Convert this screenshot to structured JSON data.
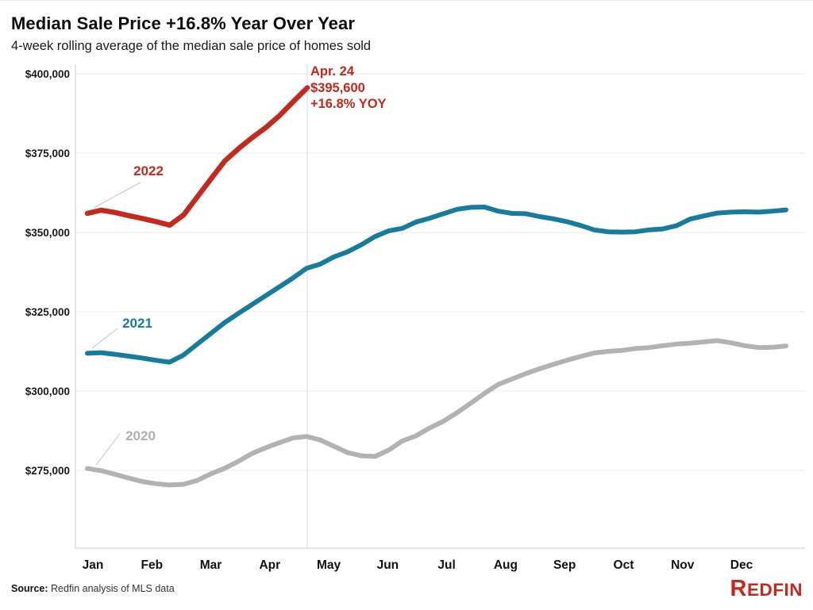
{
  "header": {
    "title": "Median Sale Price +16.8% Year Over Year",
    "subtitle": "4-week rolling average of the median sale price of homes sold"
  },
  "annotation": {
    "lines": [
      "Apr. 24",
      "$395,600",
      "+16.8% YOY"
    ]
  },
  "footer": {
    "source_label": "Source:",
    "source_text": " Redfin analysis of MLS data",
    "logo_first": "R",
    "logo_rest": "EDFIN"
  },
  "chart_data": {
    "type": "line",
    "title": "Median Sale Price +16.8% Year Over Year",
    "subtitle": "4-week rolling average of the median sale price of homes sold",
    "x_description": "weekly points, January through December of each year",
    "x_tick_labels": [
      "Jan",
      "Feb",
      "Mar",
      "Apr",
      "May",
      "Jun",
      "Jul",
      "Aug",
      "Sep",
      "Oct",
      "Nov",
      "Dec"
    ],
    "y_ticks": [
      {
        "label": "$400,000",
        "value": 400000
      },
      {
        "label": "$375,000",
        "value": 375000
      },
      {
        "label": "$350,000",
        "value": 350000
      },
      {
        "label": "$325,000",
        "value": 325000
      },
      {
        "label": "$300,000",
        "value": 300000
      },
      {
        "label": "$275,000",
        "value": 275000
      }
    ],
    "ylim": [
      250000,
      400000
    ],
    "grid": "horizontal",
    "legend": "inline-labels",
    "highlight": {
      "date_label": "Apr. 24",
      "series": "2022",
      "value": 395600,
      "value_label": "$395,600",
      "yoy_label": "+16.8% YOY"
    },
    "series": [
      {
        "name": "2020",
        "color": "#b2b2b2",
        "values": [
          275600,
          274900,
          273800,
          272600,
          271500,
          270800,
          270400,
          270600,
          271800,
          273900,
          275600,
          277800,
          280300,
          282100,
          283700,
          285200,
          285700,
          284600,
          282600,
          280600,
          279600,
          279400,
          281400,
          284300,
          285900,
          288400,
          290500,
          293200,
          296200,
          299300,
          302100,
          303800,
          305500,
          307000,
          308400,
          309700,
          310900,
          312000,
          312500,
          312800,
          313400,
          313700,
          314300,
          314800,
          315100,
          315500,
          315900,
          315200,
          314300,
          313700,
          313800,
          314200
        ]
      },
      {
        "name": "2021",
        "color": "#177b9c",
        "values": [
          311900,
          312100,
          311600,
          311000,
          310400,
          309700,
          309100,
          311300,
          314700,
          318100,
          321500,
          324400,
          327200,
          330000,
          332800,
          335600,
          338700,
          340000,
          342300,
          343900,
          346100,
          348700,
          350500,
          351300,
          353300,
          354500,
          355900,
          357300,
          357900,
          358000,
          356700,
          356000,
          355900,
          355000,
          354300,
          353400,
          352200,
          350800,
          350200,
          350100,
          350200,
          350800,
          351100,
          352100,
          354200,
          355200,
          356100,
          356400,
          356500,
          356400,
          356700,
          357100
        ]
      },
      {
        "name": "2022",
        "color": "#c5281c",
        "values": [
          356000,
          357000,
          356300,
          355300,
          354400,
          353400,
          352300,
          355500,
          361200,
          366900,
          372500,
          376400,
          379900,
          383100,
          386900,
          391300,
          395600
        ]
      }
    ]
  }
}
